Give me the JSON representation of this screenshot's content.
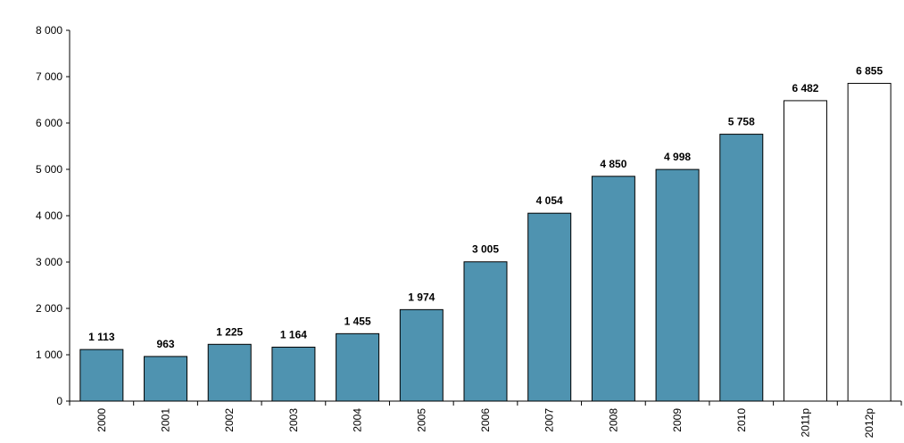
{
  "chart_data": {
    "type": "bar",
    "categories": [
      "2000",
      "2001",
      "2002",
      "2003",
      "2004",
      "2005",
      "2006",
      "2007",
      "2008",
      "2009",
      "2010",
      "2011p",
      "2012p"
    ],
    "values": [
      1113,
      963,
      1225,
      1164,
      1455,
      1974,
      3005,
      4054,
      4850,
      4998,
      5758,
      6482,
      6855
    ],
    "value_labels": [
      "1 113",
      "963",
      "1 225",
      "1 164",
      "1 455",
      "1 974",
      "3 005",
      "4 054",
      "4 850",
      "4 998",
      "5 758",
      "6 482",
      "6 855"
    ],
    "colors": [
      "#4f93b0",
      "#4f93b0",
      "#4f93b0",
      "#4f93b0",
      "#4f93b0",
      "#4f93b0",
      "#4f93b0",
      "#4f93b0",
      "#4f93b0",
      "#4f93b0",
      "#4f93b0",
      "#ffffff",
      "#ffffff"
    ],
    "ylim": [
      0,
      8000
    ],
    "yticks": [
      0,
      {
        "value": 1000,
        "label": "1 000"
      },
      {
        "value": 2000,
        "label": "2 000"
      },
      {
        "value": 3000,
        "label": "3 000"
      },
      {
        "value": 4000,
        "label": "4 000"
      },
      {
        "value": 5000,
        "label": "5 000"
      },
      {
        "value": 6000,
        "label": "6 000"
      },
      {
        "value": 7000,
        "label": "7 000"
      },
      {
        "value": 8000,
        "label": "8 000"
      }
    ],
    "grid": false
  }
}
